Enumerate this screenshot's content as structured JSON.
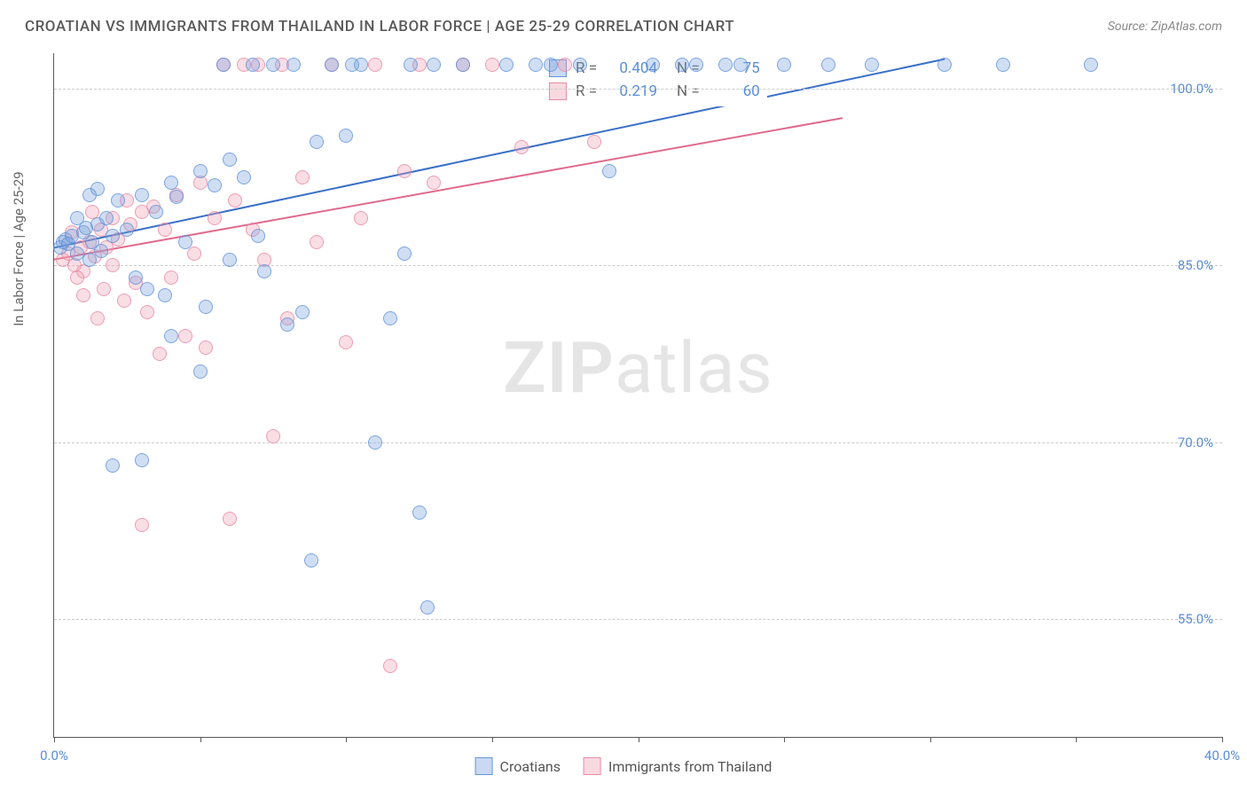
{
  "header": {
    "title": "CROATIAN VS IMMIGRANTS FROM THAILAND IN LABOR FORCE | AGE 25-29 CORRELATION CHART",
    "source": "Source: ZipAtlas.com"
  },
  "chart": {
    "type": "scatter",
    "y_axis_title": "In Labor Force | Age 25-29",
    "xlim": [
      0,
      40
    ],
    "ylim": [
      45,
      103
    ],
    "xtick_positions": [
      0,
      5,
      10,
      15,
      20,
      25,
      30,
      35,
      40
    ],
    "xtick_labels": {
      "0": "0.0%",
      "40": "40.0%"
    },
    "ytick_positions": [
      55,
      70,
      85,
      100
    ],
    "ytick_labels": {
      "55": "55.0%",
      "70": "70.0%",
      "85": "85.0%",
      "100": "100.0%"
    },
    "background_color": "#ffffff",
    "grid_color": "#cccccc",
    "axis_color": "#5a5a5a",
    "label_color": "#5a8dd6",
    "series": {
      "croatians": {
        "label": "Croatians",
        "color_fill": "rgba(120,160,220,0.35)",
        "color_stroke": "#5a8dd6",
        "r_value": "0.404",
        "n_value": "75",
        "trend_line": {
          "x1": 0,
          "y1": 86.5,
          "x2": 30.5,
          "y2": 102.5,
          "color": "#3a6fc8",
          "width": 2
        },
        "points": [
          [
            0.2,
            86.5
          ],
          [
            0.3,
            87.0
          ],
          [
            0.4,
            87.2
          ],
          [
            0.5,
            86.8
          ],
          [
            0.6,
            87.5
          ],
          [
            0.8,
            86.0
          ],
          [
            1.0,
            87.8
          ],
          [
            1.1,
            88.2
          ],
          [
            1.2,
            85.5
          ],
          [
            1.3,
            87.0
          ],
          [
            1.5,
            88.5
          ],
          [
            1.6,
            86.2
          ],
          [
            1.8,
            89.0
          ],
          [
            2.0,
            87.5
          ],
          [
            2.2,
            90.5
          ],
          [
            2.5,
            88.0
          ],
          [
            2.8,
            84.0
          ],
          [
            3.0,
            91.0
          ],
          [
            3.2,
            83.0
          ],
          [
            3.5,
            89.5
          ],
          [
            3.8,
            82.5
          ],
          [
            4.0,
            92.0
          ],
          [
            4.2,
            90.8
          ],
          [
            4.5,
            87.0
          ],
          [
            5.0,
            93.0
          ],
          [
            5.2,
            81.5
          ],
          [
            5.5,
            91.8
          ],
          [
            5.8,
            102.0
          ],
          [
            6.0,
            94.0
          ],
          [
            6.5,
            92.5
          ],
          [
            6.8,
            102.0
          ],
          [
            7.0,
            87.5
          ],
          [
            7.2,
            84.5
          ],
          [
            7.5,
            102.0
          ],
          [
            8.0,
            80.0
          ],
          [
            8.2,
            102.0
          ],
          [
            8.5,
            81.0
          ],
          [
            8.8,
            60.0
          ],
          [
            9.0,
            95.5
          ],
          [
            9.5,
            102.0
          ],
          [
            10.0,
            96.0
          ],
          [
            10.2,
            102.0
          ],
          [
            10.5,
            102.0
          ],
          [
            11.0,
            70.0
          ],
          [
            11.5,
            80.5
          ],
          [
            12.0,
            86.0
          ],
          [
            12.2,
            102.0
          ],
          [
            12.5,
            64.0
          ],
          [
            12.8,
            56.0
          ],
          [
            13.0,
            102.0
          ],
          [
            14.0,
            102.0
          ],
          [
            15.5,
            102.0
          ],
          [
            16.5,
            102.0
          ],
          [
            17.0,
            102.0
          ],
          [
            18.0,
            102.0
          ],
          [
            19.0,
            93.0
          ],
          [
            20.5,
            102.0
          ],
          [
            21.5,
            102.0
          ],
          [
            22.0,
            102.0
          ],
          [
            23.0,
            102.0
          ],
          [
            23.5,
            102.0
          ],
          [
            25.0,
            102.0
          ],
          [
            26.5,
            102.0
          ],
          [
            28.0,
            102.0
          ],
          [
            30.5,
            102.0
          ],
          [
            32.5,
            102.0
          ],
          [
            35.5,
            102.0
          ],
          [
            2.0,
            68.0
          ],
          [
            3.0,
            68.5
          ],
          [
            4.0,
            79.0
          ],
          [
            5.0,
            76.0
          ],
          [
            6.0,
            85.5
          ],
          [
            1.5,
            91.5
          ],
          [
            0.8,
            89.0
          ],
          [
            1.2,
            91.0
          ]
        ]
      },
      "thailand": {
        "label": "Immigrants from Thailand",
        "color_fill": "rgba(240,160,180,0.35)",
        "color_stroke": "#e682a0",
        "r_value": "0.219",
        "n_value": "60",
        "trend_line": {
          "x1": 0,
          "y1": 85.5,
          "x2": 27,
          "y2": 97.5,
          "color": "#e06a8c",
          "width": 2
        },
        "points": [
          [
            0.3,
            85.5
          ],
          [
            0.5,
            86.0
          ],
          [
            0.7,
            85.0
          ],
          [
            0.9,
            86.5
          ],
          [
            1.0,
            84.5
          ],
          [
            1.2,
            87.0
          ],
          [
            1.4,
            85.8
          ],
          [
            1.6,
            88.0
          ],
          [
            1.8,
            86.5
          ],
          [
            2.0,
            89.0
          ],
          [
            2.2,
            87.2
          ],
          [
            2.4,
            82.0
          ],
          [
            2.6,
            88.5
          ],
          [
            2.8,
            83.5
          ],
          [
            3.0,
            89.5
          ],
          [
            3.2,
            81.0
          ],
          [
            3.4,
            90.0
          ],
          [
            3.6,
            77.5
          ],
          [
            3.8,
            88.0
          ],
          [
            4.0,
            84.0
          ],
          [
            4.2,
            91.0
          ],
          [
            4.5,
            79.0
          ],
          [
            4.8,
            86.0
          ],
          [
            5.0,
            92.0
          ],
          [
            5.2,
            78.0
          ],
          [
            5.5,
            89.0
          ],
          [
            5.8,
            102.0
          ],
          [
            6.0,
            63.5
          ],
          [
            6.2,
            90.5
          ],
          [
            6.5,
            102.0
          ],
          [
            6.8,
            88.0
          ],
          [
            7.0,
            102.0
          ],
          [
            7.2,
            85.5
          ],
          [
            7.5,
            70.5
          ],
          [
            7.8,
            102.0
          ],
          [
            8.0,
            80.5
          ],
          [
            8.5,
            92.5
          ],
          [
            9.0,
            87.0
          ],
          [
            9.5,
            102.0
          ],
          [
            10.0,
            78.5
          ],
          [
            10.5,
            89.0
          ],
          [
            11.0,
            102.0
          ],
          [
            11.5,
            51.0
          ],
          [
            12.0,
            93.0
          ],
          [
            12.5,
            102.0
          ],
          [
            13.0,
            92.0
          ],
          [
            14.0,
            102.0
          ],
          [
            15.0,
            102.0
          ],
          [
            16.0,
            95.0
          ],
          [
            17.5,
            102.0
          ],
          [
            18.5,
            95.5
          ],
          [
            1.0,
            82.5
          ],
          [
            1.5,
            80.5
          ],
          [
            2.0,
            85.0
          ],
          [
            2.5,
            90.5
          ],
          [
            3.0,
            63.0
          ],
          [
            0.6,
            87.8
          ],
          [
            0.8,
            84.0
          ],
          [
            1.3,
            89.5
          ],
          [
            1.7,
            83.0
          ]
        ]
      }
    }
  },
  "legend": {
    "stats_rows": [
      {
        "swatch": "blue",
        "r": "0.404",
        "n": "75"
      },
      {
        "swatch": "pink",
        "r": "0.219",
        "n": "60"
      }
    ],
    "bottom_items": [
      {
        "swatch": "blue",
        "label": "Croatians"
      },
      {
        "swatch": "pink",
        "label": "Immigrants from Thailand"
      }
    ]
  },
  "watermark": {
    "zip": "ZIP",
    "atlas": "atlas"
  }
}
